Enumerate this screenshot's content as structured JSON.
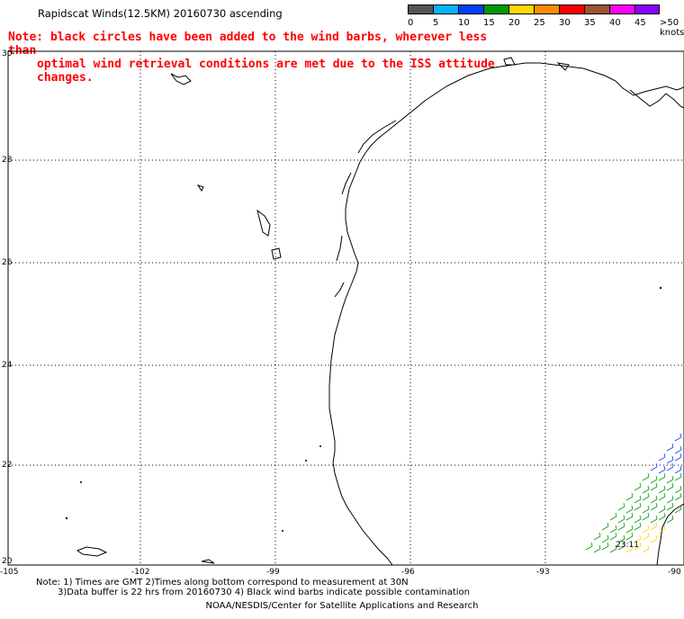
{
  "header": {
    "title": "Rapidscat Winds(12.5KM) 20160730 ascending",
    "note_line1": "Note: black circles have been added to the wind barbs, wherever less than",
    "note_line2": "optimal wind retrieval conditions are met due to the ISS attitude changes."
  },
  "legend": {
    "unit": ">50 knots",
    "labels": [
      "0",
      "5",
      "10",
      "15",
      "20",
      "25",
      "30",
      "35",
      "40",
      "45",
      ">50 knots"
    ],
    "colors": [
      "#555555",
      "#00b4ff",
      "#0040ff",
      "#009900",
      "#ffd700",
      "#ff8c00",
      "#ff0000",
      "#a0522d",
      "#ff00ff",
      "#8b00ff"
    ]
  },
  "map": {
    "lon_labels": [
      "-105",
      "-102",
      "-99",
      "-96",
      "-93",
      "-90"
    ],
    "lat_labels": [
      "30",
      "28",
      "26",
      "24",
      "22",
      "20"
    ],
    "time_label": "23:11",
    "coast_color": "#000000",
    "grid_color": "#000000"
  },
  "footer": {
    "line1": "Note: 1) Times are GMT 2)Times along bottom correspond to measurement at 30N",
    "line2": "3)Data buffer is 22 hrs from 20160730 4) Black wind barbs indicate possible contamination",
    "line3": "NOAA/NESDIS/Center for Satellite Applications and Research"
  }
}
